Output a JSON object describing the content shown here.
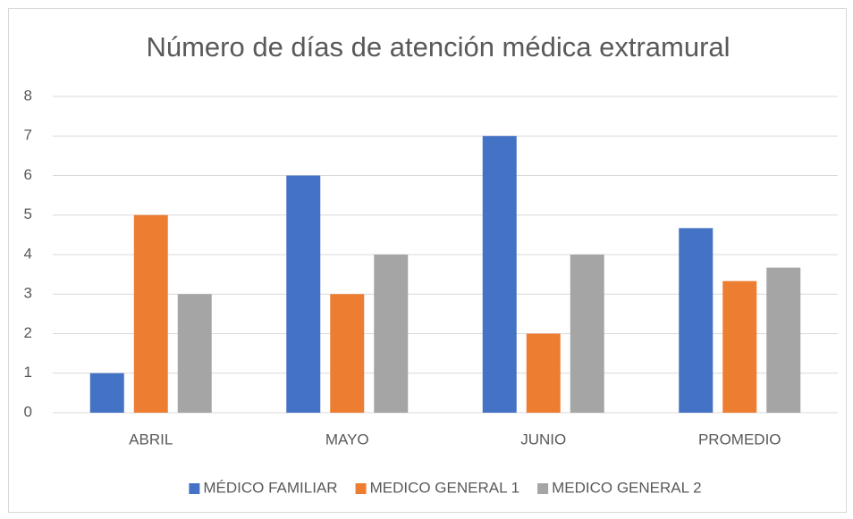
{
  "chart_data": {
    "type": "bar",
    "title": "Número de días de atención médica extramural",
    "categories": [
      "ABRIL",
      "MAYO",
      "JUNIO",
      "PROMEDIO"
    ],
    "series": [
      {
        "name": "MÉDICO FAMILIAR",
        "color": "#4472c4",
        "values": [
          1,
          6,
          7,
          4.67
        ]
      },
      {
        "name": "MEDICO GENERAL 1",
        "color": "#ed7d31",
        "values": [
          5,
          3,
          2,
          3.33
        ]
      },
      {
        "name": "MEDICO GENERAL 2",
        "color": "#a5a5a5",
        "values": [
          3,
          4,
          4,
          3.67
        ]
      }
    ],
    "ylim": [
      0,
      8
    ],
    "yticks": [
      0,
      1,
      2,
      3,
      4,
      5,
      6,
      7,
      8
    ],
    "grid": true,
    "legend": "bottom"
  }
}
